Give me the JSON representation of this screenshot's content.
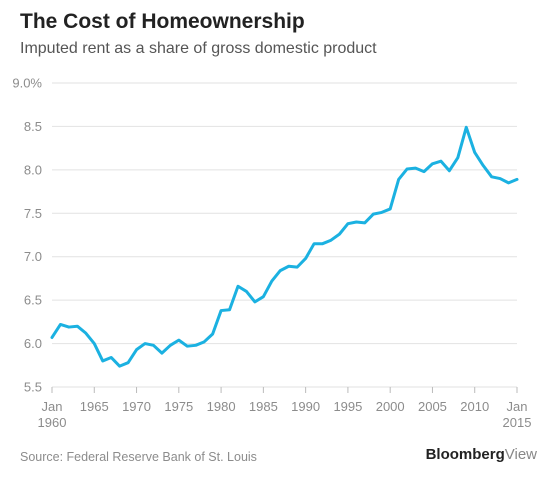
{
  "header": {
    "title": "The Cost of Homeownership",
    "subtitle": "Imputed rent as a share of gross domestic product"
  },
  "footer": {
    "source": "Source: Federal Reserve Bank of St. Louis",
    "brand_bold": "Bloomberg",
    "brand_light": "View"
  },
  "colors": {
    "line": "#1bb1e1",
    "grid": "#e2e2e2",
    "tick": "#8c8c8c"
  },
  "chart_data": {
    "type": "line",
    "title": "The Cost of Homeownership",
    "subtitle": "Imputed rent as a share of gross domestic product",
    "xlim": [
      1960,
      2015
    ],
    "ylim": [
      5.5,
      9.0
    ],
    "grid": true,
    "legend": "none",
    "y_ticks": [
      5.5,
      6.0,
      6.5,
      7.0,
      7.5,
      8.0,
      8.5,
      9.0
    ],
    "y_tick_labels": [
      "5.5",
      "6.0",
      "6.5",
      "7.0",
      "7.5",
      "8.0",
      "8.5",
      "9.0%"
    ],
    "x_ticks": [
      1960,
      1965,
      1970,
      1975,
      1980,
      1985,
      1990,
      1995,
      2000,
      2005,
      2010,
      2015
    ],
    "x_tick_labels": [
      [
        "Jan",
        "1960"
      ],
      [
        "1965"
      ],
      [
        "1970"
      ],
      [
        "1975"
      ],
      [
        "1980"
      ],
      [
        "1985"
      ],
      [
        "1990"
      ],
      [
        "1995"
      ],
      [
        "2000"
      ],
      [
        "2005"
      ],
      [
        "2010"
      ],
      [
        "Jan",
        "2015"
      ]
    ],
    "series": [
      {
        "x": [
          1960,
          1961,
          1962,
          1963,
          1964,
          1965,
          1966,
          1967,
          1968,
          1969,
          1970,
          1971,
          1972,
          1973,
          1974,
          1975,
          1976,
          1977,
          1978,
          1979,
          1980,
          1981,
          1982,
          1983,
          1984,
          1985,
          1986,
          1987,
          1988,
          1989,
          1990,
          1991,
          1992,
          1993,
          1994,
          1995,
          1996,
          1997,
          1998,
          1999,
          2000,
          2001,
          2002,
          2003,
          2004,
          2005,
          2006,
          2007,
          2008,
          2009,
          2010,
          2011,
          2012,
          2013,
          2014,
          2015
        ],
        "y": [
          6.07,
          6.22,
          6.19,
          6.2,
          6.12,
          6.0,
          5.8,
          5.84,
          5.74,
          5.78,
          5.93,
          6.0,
          5.98,
          5.89,
          5.98,
          6.04,
          5.97,
          5.98,
          6.02,
          6.11,
          6.38,
          6.39,
          6.66,
          6.6,
          6.48,
          6.54,
          6.72,
          6.84,
          6.89,
          6.88,
          6.98,
          7.15,
          7.15,
          7.19,
          7.26,
          7.38,
          7.4,
          7.39,
          7.49,
          7.51,
          7.55,
          7.89,
          8.01,
          8.02,
          7.98,
          8.07,
          8.1,
          7.99,
          8.14,
          8.49,
          8.2,
          8.05,
          7.92,
          7.9,
          7.85,
          7.89
        ]
      }
    ]
  }
}
